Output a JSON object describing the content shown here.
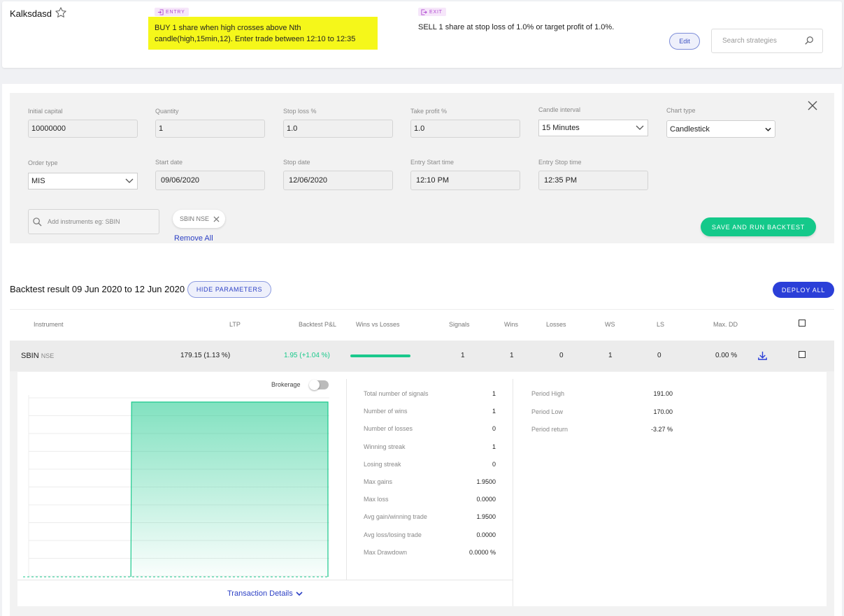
{
  "strategy": {
    "name": "Kalksdasd",
    "entry_tag": "ENTRY",
    "entry_text": "BUY 1 share when high crosses above Nth candle(high,15min,12). Enter trade between 12:10 to 12:35",
    "exit_tag": "EXIT",
    "exit_text": "SELL 1 share at stop loss of 1.0% or target profit of 1.0%.",
    "edit_label": "Edit",
    "search_placeholder": "Search strategies"
  },
  "params": {
    "initial_capital": {
      "label": "Initial capital",
      "value": "10000000"
    },
    "quantity": {
      "label": "Quantity",
      "value": "1"
    },
    "stop_loss": {
      "label": "Stop loss %",
      "value": "1.0"
    },
    "take_profit": {
      "label": "Take profit %",
      "value": "1.0"
    },
    "candle_interval": {
      "label": "Candle interval",
      "value": "15 Minutes"
    },
    "chart_type": {
      "label": "Chart type",
      "value": "Candlestick"
    },
    "order_type": {
      "label": "Order type",
      "value": "MIS"
    },
    "start_date": {
      "label": "Start date",
      "value": "09/06/2020"
    },
    "stop_date": {
      "label": "Stop date",
      "value": "12/06/2020"
    },
    "entry_start_time": {
      "label": "Entry Start time",
      "value": "12:10 PM"
    },
    "entry_stop_time": {
      "label": "Entry Stop time",
      "value": "12:35 PM"
    },
    "instrument_placeholder": "Add instruments eg: SBIN",
    "chip": "SBIN NSE",
    "remove_all": "Remove All",
    "save_run": "SAVE AND RUN BACKTEST"
  },
  "result": {
    "title": "Backtest result 09 Jun 2020 to 12 Jun 2020",
    "hide_params": "HIDE PARAMETERS",
    "deploy_all": "DEPLOY ALL",
    "columns": {
      "instrument": "Instrument",
      "ltp": "LTP",
      "pnl": "Backtest P&L",
      "wvl": "Wins vs Losses",
      "signals": "Signals",
      "wins": "Wins",
      "losses": "Losses",
      "ws": "WS",
      "ls": "LS",
      "maxdd": "Max. DD"
    },
    "row": {
      "symbol": "SBIN",
      "exchange": "NSE",
      "ltp": "179.15 (1.13 %)",
      "pnl": "1.95 (+1.04 %)",
      "signals": "1",
      "wins": "1",
      "losses": "0",
      "ws": "1",
      "ls": "0",
      "maxdd": "0.00 %",
      "win_fraction": 1.0
    }
  },
  "detail": {
    "brokerage_label": "Brokerage",
    "brokerage_on": false,
    "stats": [
      {
        "label": "Total number of signals",
        "value": "1"
      },
      {
        "label": "Number of wins",
        "value": "1"
      },
      {
        "label": "Number of losses",
        "value": "0"
      },
      {
        "label": "Winning streak",
        "value": "1"
      },
      {
        "label": "Losing streak",
        "value": "0"
      },
      {
        "label": "Max gains",
        "value": "1.9500"
      },
      {
        "label": "Max loss",
        "value": "0.0000"
      },
      {
        "label": "Avg gain/winning trade",
        "value": "1.9500"
      },
      {
        "label": "Avg loss/losing trade",
        "value": "0.0000"
      },
      {
        "label": "Max Drawdown",
        "value": "0.0000 %"
      }
    ],
    "period": [
      {
        "label": "Period High",
        "value": "191.00"
      },
      {
        "label": "Period Low",
        "value": "170.00"
      },
      {
        "label": "Period return",
        "value": "-3.27 %"
      }
    ],
    "transaction_details": "Transaction Details"
  },
  "chart_data": {
    "type": "area",
    "x": [
      0,
      1,
      2,
      3
    ],
    "values": [
      0,
      0,
      1.95,
      1.95
    ],
    "ylim": [
      0,
      1.95
    ],
    "grid": true,
    "color": "#1ac98c"
  }
}
